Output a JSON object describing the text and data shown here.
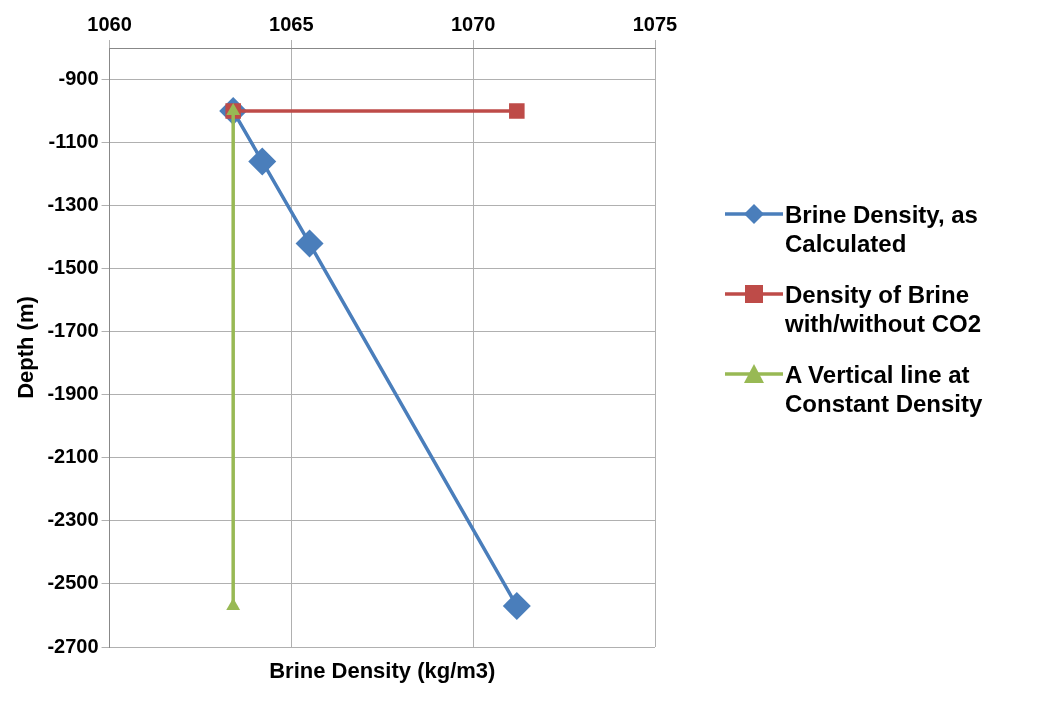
{
  "chart_data": {
    "type": "line",
    "xlabel": "Brine Density (kg/m3)",
    "ylabel": "Depth (m)",
    "xlim": [
      1060,
      1075
    ],
    "xticks": [
      1060,
      1065,
      1070,
      1075
    ],
    "ylim": [
      -2700,
      -800
    ],
    "yticks": [
      -2700,
      -2500,
      -2300,
      -2100,
      -1900,
      -1700,
      -1500,
      -1300,
      -1100,
      -900
    ],
    "grid": true,
    "legend": "right",
    "series": [
      {
        "name": "Brine Density, as Calculated",
        "color": "#4a7ebb",
        "marker": "diamond",
        "x": [
          1063.4,
          1064.2,
          1065.5,
          1071.2
        ],
        "values": [
          -1000,
          -1160,
          -1420,
          -2570
        ]
      },
      {
        "name": "Density of Brine with/without CO2",
        "color": "#be4b48",
        "marker": "square",
        "x": [
          1063.4,
          1071.2
        ],
        "values": [
          -1000,
          -1000
        ]
      },
      {
        "name": "A Vertical line at Constant Density",
        "color": "#98b954",
        "marker": "triangle",
        "x": [
          1063.4,
          1063.4
        ],
        "values": [
          -1000,
          -2570
        ]
      }
    ]
  }
}
